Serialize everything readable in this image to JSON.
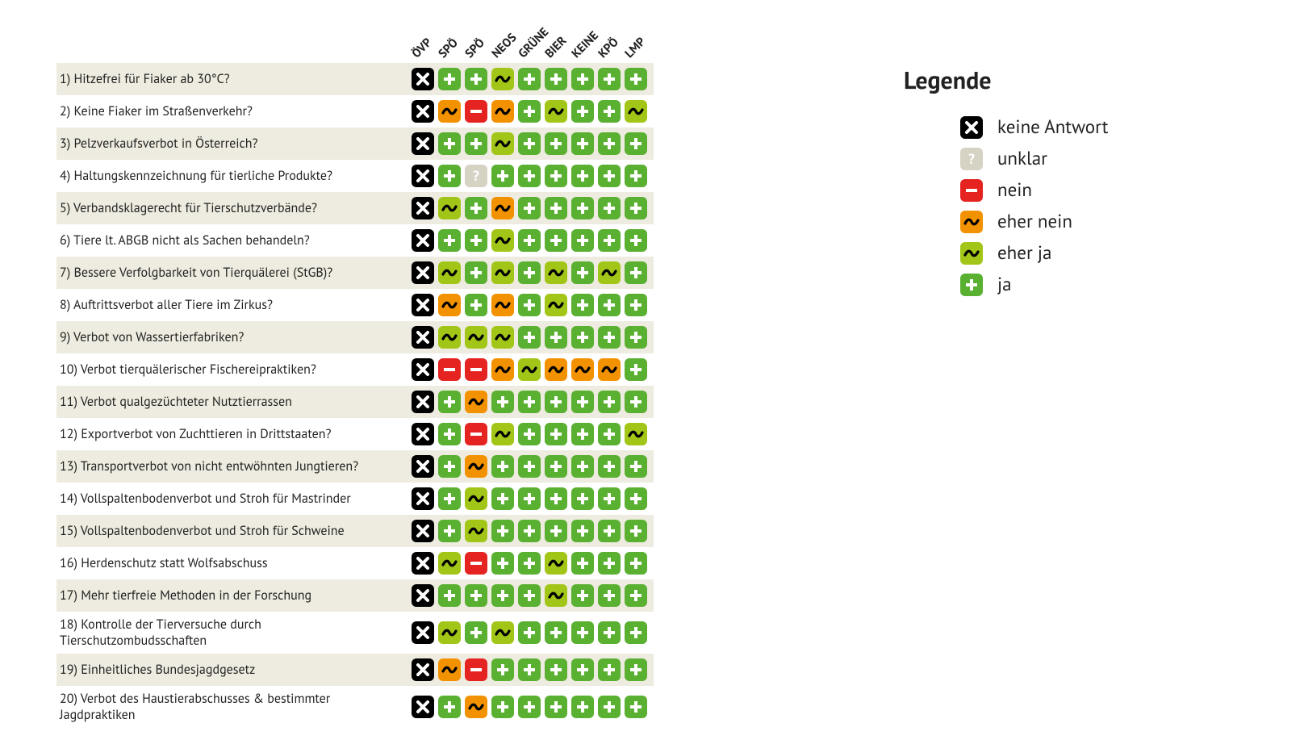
{
  "colors": {
    "row_stripe": "#eeece0",
    "background": "#ffffff",
    "text": "#222222"
  },
  "answer_types": {
    "none": {
      "bg": "#ffffff",
      "fg": "#000000",
      "shape": "cross",
      "label": "keine Antwort"
    },
    "unklar": {
      "bg": "#d6d2c4",
      "fg": "#ffffff",
      "shape": "qmark",
      "label": "unklar"
    },
    "nein": {
      "bg": "#e52421",
      "fg": "#ffffff",
      "shape": "minus",
      "label": "nein"
    },
    "ehernein": {
      "bg": "#f39200",
      "fg": "#000000",
      "shape": "tilde",
      "label": "eher nein"
    },
    "eherja": {
      "bg": "#a2c617",
      "fg": "#000000",
      "shape": "tilde",
      "label": "eher ja"
    },
    "ja": {
      "bg": "#5ab031",
      "fg": "#ffffff",
      "shape": "plus",
      "label": "ja"
    }
  },
  "legend": {
    "title": "Legende",
    "order": [
      "none",
      "unklar",
      "nein",
      "ehernein",
      "eherja",
      "ja"
    ]
  },
  "parties": [
    "ÖVP",
    "SPÖ",
    "SPÖ",
    "NEOS",
    "GRÜNE",
    "BIER",
    "KEINE",
    "KPÖ",
    "LMP"
  ],
  "questions": [
    {
      "text": "1) Hitzefrei für Fiaker ab 30°C?",
      "answers": [
        "none",
        "ja",
        "ja",
        "eherja",
        "ja",
        "ja",
        "ja",
        "ja",
        "ja"
      ]
    },
    {
      "text": "2) Keine Fiaker im Straßenverkehr?",
      "answers": [
        "none",
        "ehernein",
        "nein",
        "ehernein",
        "ja",
        "eherja",
        "ja",
        "ja",
        "eherja"
      ]
    },
    {
      "text": "3) Pelzverkaufsverbot in Österreich?",
      "answers": [
        "none",
        "ja",
        "ja",
        "eherja",
        "ja",
        "ja",
        "ja",
        "ja",
        "ja"
      ]
    },
    {
      "text": "4) Haltungskennzeichnung für tierliche Produkte?",
      "answers": [
        "none",
        "ja",
        "unklar",
        "ja",
        "ja",
        "ja",
        "ja",
        "ja",
        "ja"
      ]
    },
    {
      "text": "5) Verbandsklagerecht für Tierschutzverbände?",
      "answers": [
        "none",
        "eherja",
        "ja",
        "ehernein",
        "ja",
        "ja",
        "ja",
        "ja",
        "ja"
      ]
    },
    {
      "text": "6) Tiere lt. ABGB nicht als Sachen behandeln?",
      "answers": [
        "none",
        "ja",
        "ja",
        "eherja",
        "ja",
        "ja",
        "ja",
        "ja",
        "ja"
      ]
    },
    {
      "text": "7) Bessere Verfolgbarkeit von Tierquälerei (StGB)?",
      "answers": [
        "none",
        "eherja",
        "ja",
        "eherja",
        "ja",
        "eherja",
        "ja",
        "eherja",
        "ja"
      ]
    },
    {
      "text": "8) Auftrittsverbot aller Tiere im Zirkus?",
      "answers": [
        "none",
        "ehernein",
        "ja",
        "ehernein",
        "ja",
        "eherja",
        "ja",
        "ja",
        "ja"
      ]
    },
    {
      "text": "9) Verbot von Wassertierfabriken?",
      "answers": [
        "none",
        "eherja",
        "eherja",
        "eherja",
        "ja",
        "ja",
        "ja",
        "ja",
        "ja"
      ]
    },
    {
      "text": "10) Verbot tierquälerischer Fischereipraktiken?",
      "answers": [
        "none",
        "nein",
        "nein",
        "ehernein",
        "eherja",
        "ehernein",
        "ehernein",
        "ehernein",
        "ja"
      ]
    },
    {
      "text": "11) Verbot qualgezüchteter Nutztierrassen",
      "answers": [
        "none",
        "ja",
        "ehernein",
        "ja",
        "ja",
        "ja",
        "ja",
        "ja",
        "ja"
      ]
    },
    {
      "text": "12) Exportverbot von Zuchttieren in Drittstaaten?",
      "answers": [
        "none",
        "ja",
        "nein",
        "eherja",
        "ja",
        "ja",
        "ja",
        "ja",
        "eherja"
      ]
    },
    {
      "text": "13) Transportverbot von nicht entwöhnten Jungtieren?",
      "answers": [
        "none",
        "ja",
        "ehernein",
        "ja",
        "ja",
        "ja",
        "ja",
        "ja",
        "ja"
      ]
    },
    {
      "text": "14) Vollspaltenbodenverbot und Stroh für Mastrinder",
      "answers": [
        "none",
        "ja",
        "eherja",
        "ja",
        "ja",
        "ja",
        "ja",
        "ja",
        "ja"
      ]
    },
    {
      "text": "15) Vollspaltenbodenverbot und Stroh für Schweine",
      "answers": [
        "none",
        "ja",
        "eherja",
        "ja",
        "ja",
        "ja",
        "ja",
        "ja",
        "ja"
      ]
    },
    {
      "text": "16) Herdenschutz statt Wolfsabschuss",
      "answers": [
        "none",
        "eherja",
        "nein",
        "ja",
        "ja",
        "eherja",
        "ja",
        "ja",
        "ja"
      ]
    },
    {
      "text": "17) Mehr tierfreie Methoden in der Forschung",
      "answers": [
        "none",
        "ja",
        "ja",
        "ja",
        "ja",
        "eherja",
        "ja",
        "ja",
        "ja"
      ]
    },
    {
      "text": "18) Kontrolle der Tierversuche durch Tierschutzombudsschaften",
      "answers": [
        "none",
        "eherja",
        "ja",
        "eherja",
        "ja",
        "ja",
        "ja",
        "ja",
        "ja"
      ]
    },
    {
      "text": "19) Einheitliches Bundesjagdgesetz",
      "answers": [
        "none",
        "ehernein",
        "nein",
        "ja",
        "ja",
        "ja",
        "ja",
        "ja",
        "ja"
      ]
    },
    {
      "text": "20) Verbot des Haustierabschusses & bestimmter Jagdpraktiken",
      "answers": [
        "none",
        "ja",
        "ehernein",
        "ja",
        "ja",
        "ja",
        "ja",
        "ja",
        "ja"
      ]
    }
  ]
}
